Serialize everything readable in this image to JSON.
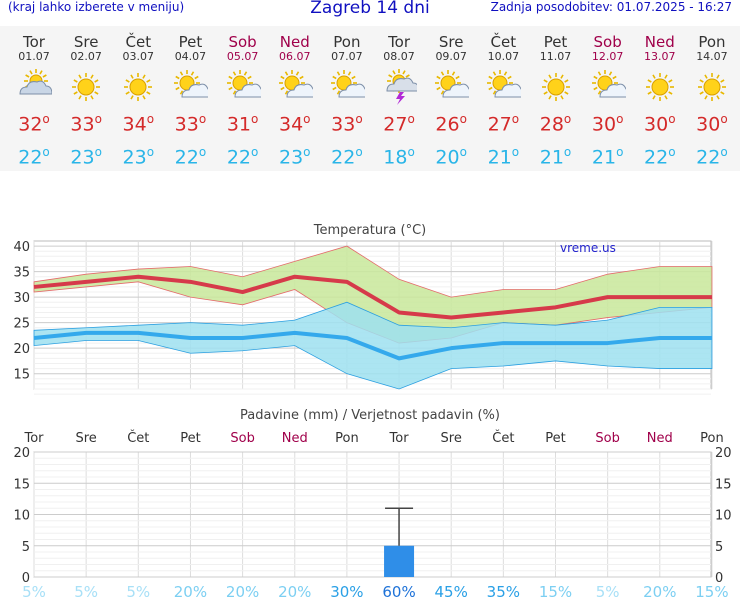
{
  "header": {
    "left": "(kraj lahko izberete v meniju)",
    "title": "Zagreb 14 dni",
    "updated": "Zadnja posodobitev: 01.07.2025 - 16:27"
  },
  "days": [
    {
      "name": "Tor",
      "date": "01.07",
      "icon": "partly-cloudy-icon",
      "hi": "32",
      "lo": "22",
      "weekend": false
    },
    {
      "name": "Sre",
      "date": "02.07",
      "icon": "sun-icon",
      "hi": "33",
      "lo": "23",
      "weekend": false
    },
    {
      "name": "Čet",
      "date": "03.07",
      "icon": "sun-icon",
      "hi": "34",
      "lo": "23",
      "weekend": false
    },
    {
      "name": "Pet",
      "date": "04.07",
      "icon": "sun-cloud-icon",
      "hi": "33",
      "lo": "22",
      "weekend": false
    },
    {
      "name": "Sob",
      "date": "05.07",
      "icon": "sun-cloud-icon",
      "hi": "31",
      "lo": "22",
      "weekend": true
    },
    {
      "name": "Ned",
      "date": "06.07",
      "icon": "sun-cloud-icon",
      "hi": "34",
      "lo": "23",
      "weekend": true
    },
    {
      "name": "Pon",
      "date": "07.07",
      "icon": "sun-cloud-icon",
      "hi": "33",
      "lo": "22",
      "weekend": false
    },
    {
      "name": "Tor",
      "date": "08.07",
      "icon": "thunderstorm-icon",
      "hi": "27",
      "lo": "18",
      "weekend": false
    },
    {
      "name": "Sre",
      "date": "09.07",
      "icon": "sun-cloud-icon",
      "hi": "26",
      "lo": "20",
      "weekend": false
    },
    {
      "name": "Čet",
      "date": "10.07",
      "icon": "sun-cloud-icon",
      "hi": "27",
      "lo": "21",
      "weekend": false
    },
    {
      "name": "Pet",
      "date": "11.07",
      "icon": "sun-icon",
      "hi": "28",
      "lo": "21",
      "weekend": false
    },
    {
      "name": "Sob",
      "date": "12.07",
      "icon": "sun-cloud-icon",
      "hi": "30",
      "lo": "21",
      "weekend": true
    },
    {
      "name": "Ned",
      "date": "13.07",
      "icon": "sun-icon",
      "hi": "30",
      "lo": "22",
      "weekend": true
    },
    {
      "name": "Pon",
      "date": "14.07",
      "icon": "sun-icon",
      "hi": "30",
      "lo": "22",
      "weekend": false
    }
  ],
  "temp_chart": {
    "title": "Temperatura (°C)",
    "watermark": "vreme.us",
    "yticks": [
      "40",
      "35",
      "30",
      "25",
      "20",
      "15"
    ]
  },
  "precip_chart": {
    "title": "Padavine (mm) / Verjetnost padavin (%)",
    "yticks": [
      "20",
      "15",
      "10",
      "5",
      "0"
    ],
    "probabilities": [
      "5%",
      "5%",
      "5%",
      "20%",
      "20%",
      "20%",
      "30%",
      "60%",
      "45%",
      "35%",
      "15%",
      "5%",
      "20%",
      "15%"
    ]
  },
  "chart_data": [
    {
      "type": "line",
      "title": "Temperatura (°C)",
      "categories": [
        "Tor",
        "Sre",
        "Čet",
        "Pet",
        "Sob",
        "Ned",
        "Pon",
        "Tor",
        "Sre",
        "Čet",
        "Pet",
        "Sob",
        "Ned",
        "Pon"
      ],
      "ylim": [
        12,
        41
      ],
      "series": [
        {
          "values": [
            32,
            33,
            34,
            33,
            31,
            34,
            33,
            27,
            26,
            27,
            28,
            30,
            30,
            30
          ],
          "color": "#d63a4a"
        },
        {
          "values": [
            22,
            23,
            23,
            22,
            22,
            23,
            22,
            18,
            20,
            21,
            21,
            21,
            22,
            22
          ],
          "color": "#34a9ec"
        }
      ],
      "ranges": [
        {
          "low": [
            31,
            32,
            33,
            30,
            28.5,
            31.5,
            25,
            21,
            22,
            25,
            24.5,
            26,
            27,
            28
          ],
          "high": [
            33,
            34.5,
            35.5,
            36,
            34,
            37,
            40,
            33.5,
            30,
            31.5,
            31.5,
            34.5,
            36,
            36
          ],
          "color": "#c8e89a"
        },
        {
          "low": [
            20.5,
            21.5,
            21.5,
            19,
            19.5,
            20.5,
            15,
            12,
            16,
            16.5,
            17.5,
            16.5,
            16,
            16
          ],
          "high": [
            23.5,
            24,
            24.5,
            25,
            24.5,
            25.5,
            29,
            24.5,
            24,
            25,
            24.5,
            25.5,
            28,
            28
          ],
          "color": "#9ee0f0"
        }
      ],
      "grid": true
    },
    {
      "type": "bar",
      "title": "Padavine (mm) / Verjetnost padavin (%)",
      "categories": [
        "Tor",
        "Sre",
        "Čet",
        "Pet",
        "Sob",
        "Ned",
        "Pon",
        "Tor",
        "Sre",
        "Čet",
        "Pet",
        "Sob",
        "Ned",
        "Pon"
      ],
      "values": [
        0,
        0,
        0,
        0,
        0,
        0,
        0,
        5,
        0,
        0,
        0,
        0,
        0,
        0
      ],
      "error_high": [
        null,
        null,
        null,
        null,
        null,
        null,
        null,
        11,
        null,
        null,
        null,
        null,
        null,
        null
      ],
      "ylim": [
        0,
        20
      ],
      "grid": true
    }
  ]
}
